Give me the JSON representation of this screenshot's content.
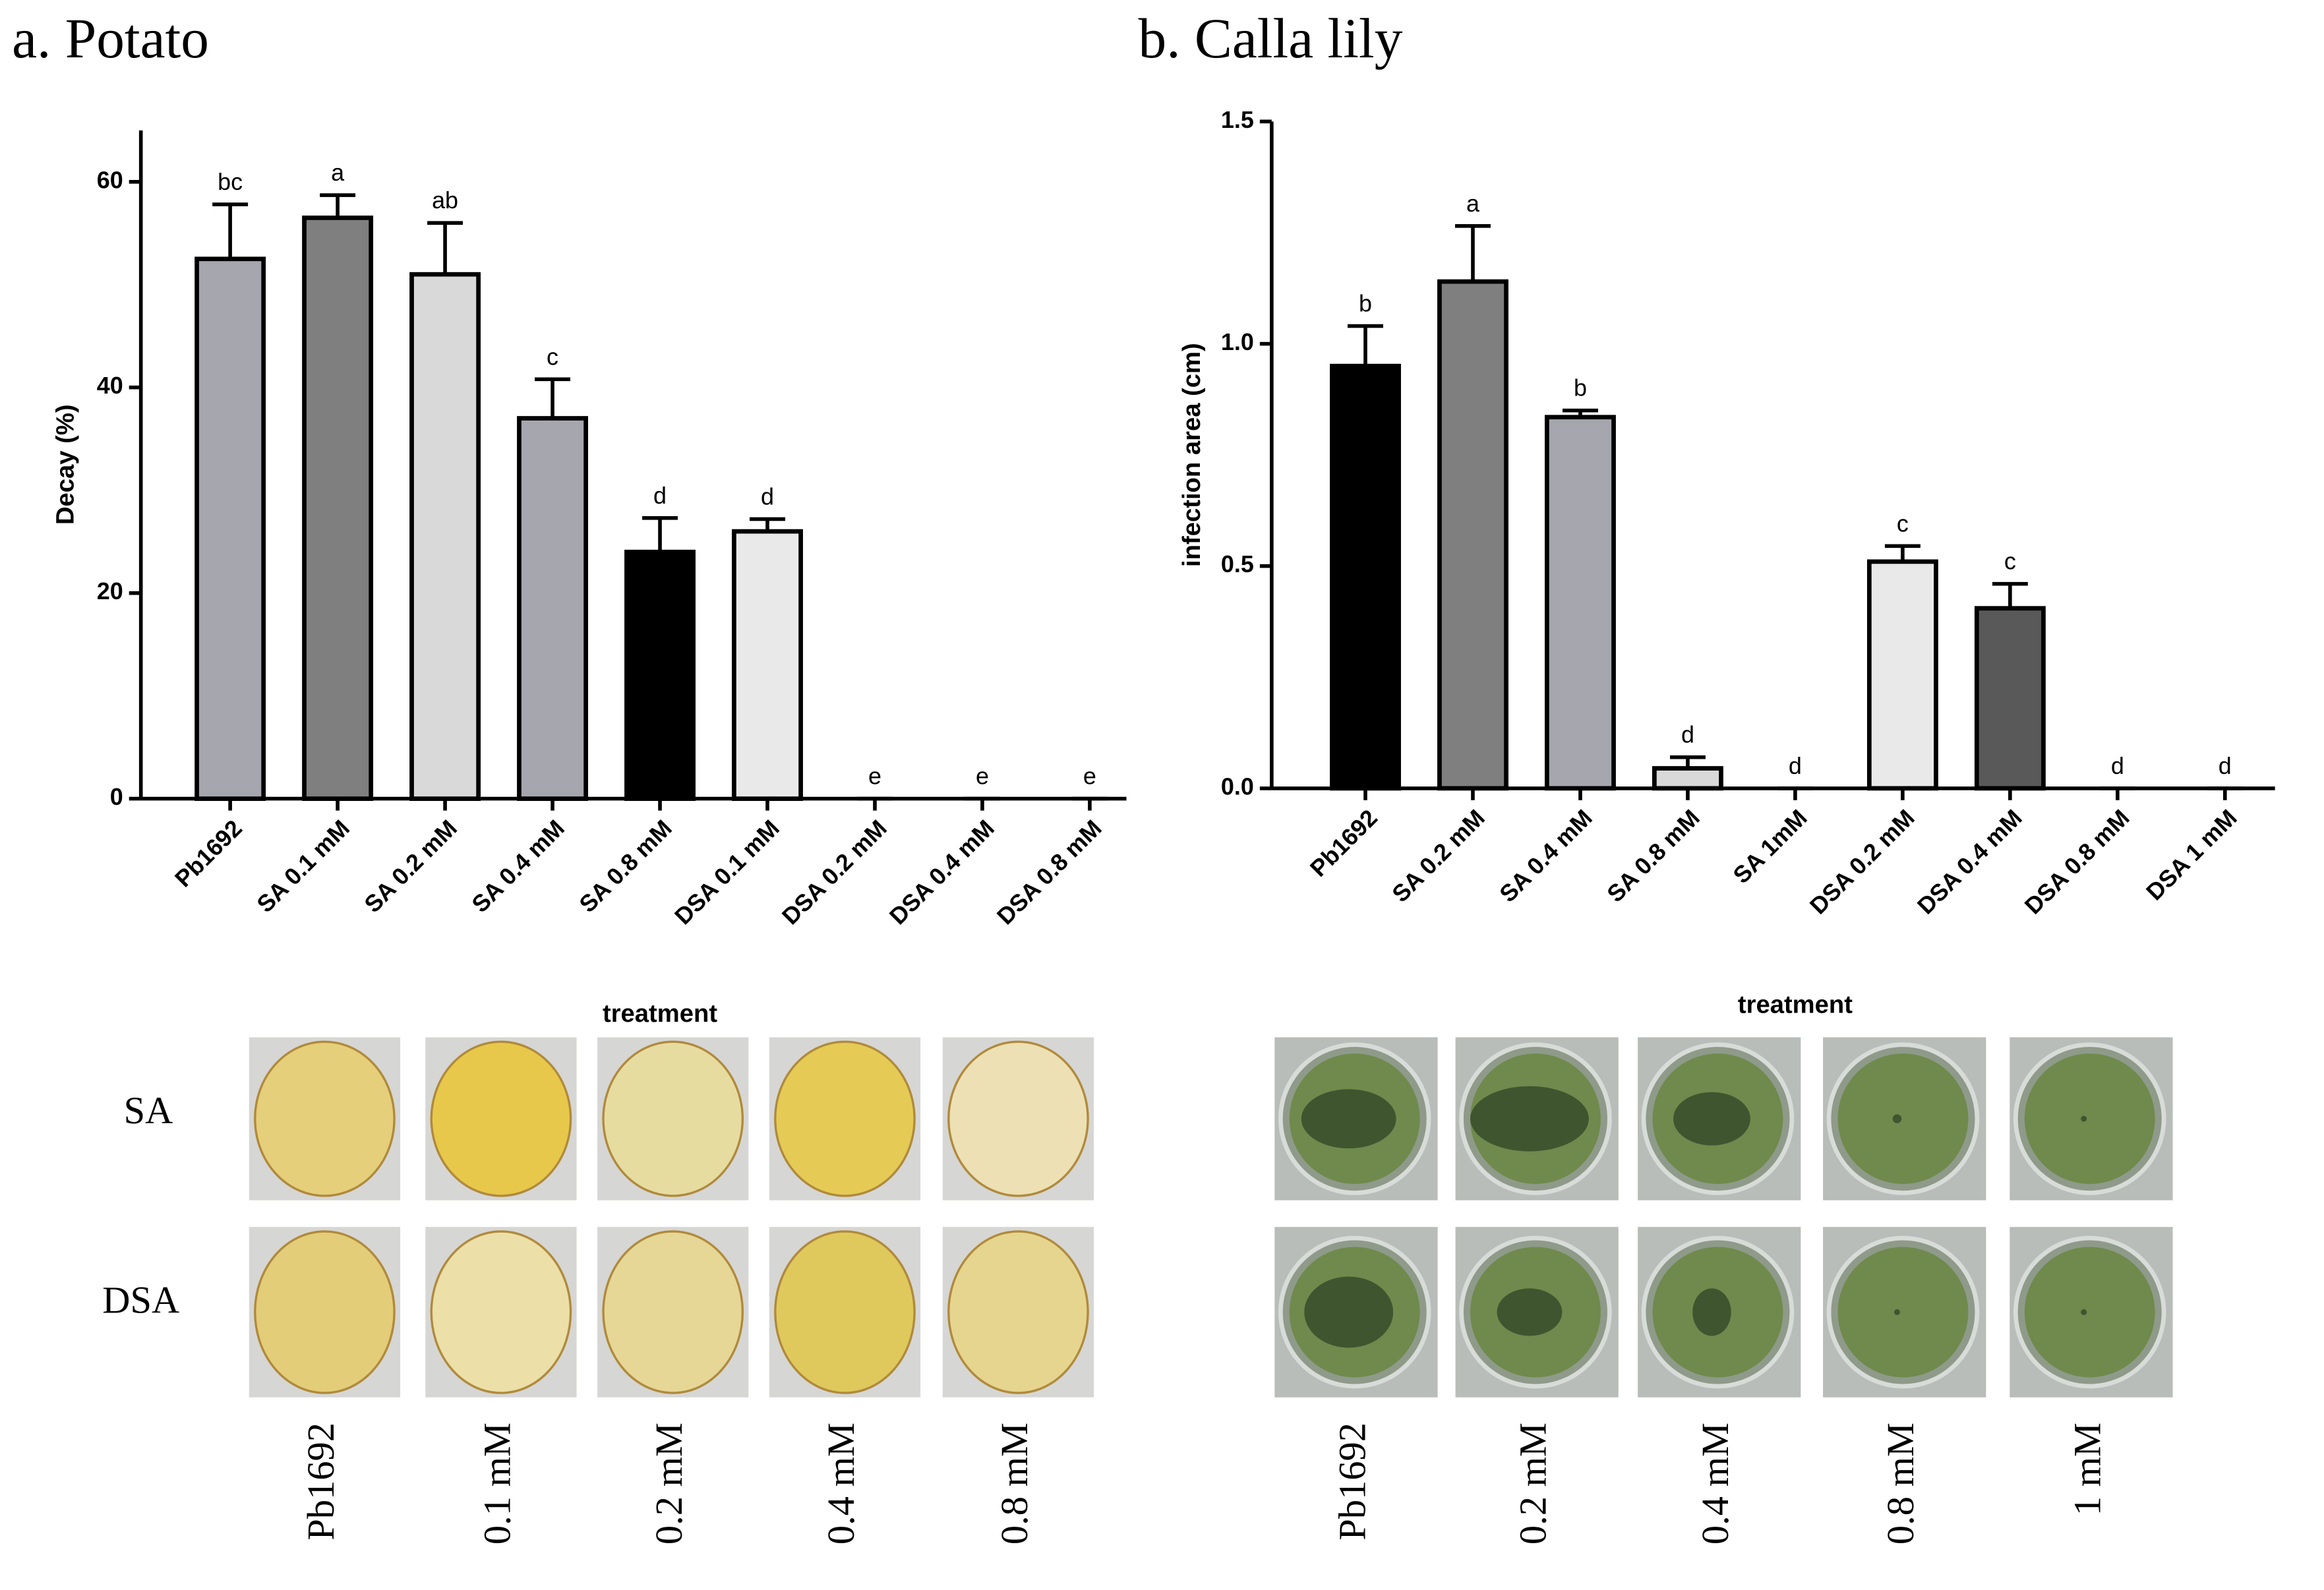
{
  "chart_data": [
    {
      "type": "bar",
      "title": "a. Potato",
      "ylabel": "Decay (%)",
      "xlabel": "treatment",
      "categories": [
        "Pb1692",
        "SA 0.1 mM",
        "SA 0.2 mM",
        "SA 0.4 mM",
        "SA 0.8 mM",
        "DSA 0.1 mM",
        "DSA 0.2 mM",
        "DSA 0.4 mM",
        "DSA 0.8 mM"
      ],
      "values": [
        52.5,
        56.5,
        51,
        37,
        24,
        26,
        0,
        0,
        0
      ],
      "errors": [
        5.3,
        2.2,
        5,
        3.8,
        3.3,
        1.2,
        0,
        0,
        0
      ],
      "letters": [
        "bc",
        "a",
        "ab",
        "c",
        "d",
        "d",
        "e",
        "e",
        "e"
      ],
      "colors": [
        "#a6a6ae",
        "#7f7f7f",
        "#d9d9d9",
        "#a6a6ae",
        "#000000",
        "#e9e9e9",
        null,
        null,
        null
      ],
      "ylim": [
        0,
        65
      ],
      "yticks": [
        0,
        20,
        40,
        60
      ]
    },
    {
      "type": "bar",
      "title": "b. Calla lily",
      "ylabel": "infection area (cm)",
      "xlabel": "treatment",
      "categories": [
        "Pb1692",
        "SA 0.2 mM",
        "SA 0.4 mM",
        "SA 0.8 mM",
        "SA 1mM",
        "DSA 0.2 mM",
        "DSA 0.4 mM",
        "DSA 0.8 mM",
        "DSA 1 mM"
      ],
      "values": [
        0.95,
        1.14,
        0.835,
        0.045,
        0,
        0.51,
        0.405,
        0,
        0
      ],
      "errors": [
        0.09,
        0.125,
        0.015,
        0.025,
        0,
        0.035,
        0.055,
        0,
        0
      ],
      "letters": [
        "b",
        "a",
        "b",
        "d",
        "d",
        "c",
        "c",
        "d",
        "d"
      ],
      "colors": [
        "#000000",
        "#7f7f7f",
        "#a6a6ae",
        "#d9d9d9",
        null,
        "#e9e9e9",
        "#595959",
        null,
        null
      ],
      "ylim": [
        0,
        1.5
      ],
      "yticks": [
        {
          "value": 0,
          "label": "0.0"
        },
        0.5,
        {
          "value": 1,
          "label": "1.0"
        },
        1.5
      ]
    }
  ],
  "photo_panels": [
    {
      "row_labels": [
        "SA",
        "DSA"
      ],
      "column_labels": [
        "Pb1692",
        "0.1 mM",
        "0.2 mM",
        "0.4 mM",
        "0.8 mM"
      ]
    },
    {
      "column_labels": [
        "Pb1692",
        "0.2 mM",
        "0.4 mM",
        "0.8 mM",
        "1 mM"
      ]
    }
  ]
}
